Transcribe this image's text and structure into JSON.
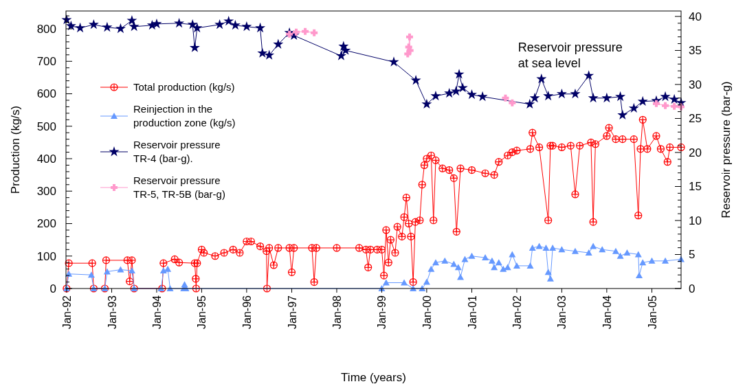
{
  "chart_data": {
    "type": "line",
    "xlabel": "Time (years)",
    "ylabel": "Production (kg/s)",
    "y2label": "Reservoir pressure (bar-g)",
    "annotations": [
      "Reservoir pressure\nat sea level"
    ],
    "legend": "left",
    "grid": false,
    "xlim": [
      "1991-12-27",
      "2005-08-26"
    ],
    "xticks": [
      {
        "value": "1992-01-01",
        "label": "Jan-92"
      },
      {
        "value": "1993-01-01",
        "label": "Jan-93"
      },
      {
        "value": "1994-01-01",
        "label": "Jan-94"
      },
      {
        "value": "1995-01-01",
        "label": "Jan-95"
      },
      {
        "value": "1996-01-01",
        "label": "Jan-96"
      },
      {
        "value": "1997-01-01",
        "label": "Jan-97"
      },
      {
        "value": "1998-01-01",
        "label": "Jan-98"
      },
      {
        "value": "1999-01-01",
        "label": "Jan-99"
      },
      {
        "value": "2000-01-01",
        "label": "Jan-00"
      },
      {
        "value": "2001-01-01",
        "label": "Jan-01"
      },
      {
        "value": "2002-01-01",
        "label": "Jan-02"
      },
      {
        "value": "2003-01-01",
        "label": "Jan-03"
      },
      {
        "value": "2004-01-01",
        "label": "Jan-04"
      },
      {
        "value": "2005-01-01",
        "label": "Jan-05"
      }
    ],
    "ylim": [
      0,
      855
    ],
    "yticks": [
      0,
      {
        "value": 20,
        "label": null
      },
      {
        "value": 40,
        "label": null
      },
      {
        "value": 60,
        "label": null
      },
      {
        "value": 80,
        "label": null
      },
      100,
      {
        "value": 120,
        "label": null
      },
      {
        "value": 140,
        "label": null
      },
      {
        "value": 160,
        "label": null
      },
      {
        "value": 180,
        "label": null
      },
      200,
      {
        "value": 220,
        "label": null
      },
      {
        "value": 240,
        "label": null
      },
      {
        "value": 260,
        "label": null
      },
      {
        "value": 280,
        "label": null
      },
      300,
      {
        "value": 320,
        "label": null
      },
      {
        "value": 340,
        "label": null
      },
      {
        "value": 360,
        "label": null
      },
      {
        "value": 380,
        "label": null
      },
      400,
      {
        "value": 420,
        "label": null
      },
      {
        "value": 440,
        "label": null
      },
      {
        "value": 460,
        "label": null
      },
      {
        "value": 480,
        "label": null
      },
      500,
      {
        "value": 520,
        "label": null
      },
      {
        "value": 540,
        "label": null
      },
      {
        "value": 560,
        "label": null
      },
      {
        "value": 580,
        "label": null
      },
      600,
      {
        "value": 620,
        "label": null
      },
      {
        "value": 640,
        "label": null
      },
      {
        "value": 660,
        "label": null
      },
      {
        "value": 680,
        "label": null
      },
      700,
      {
        "value": 720,
        "label": null
      },
      {
        "value": 740,
        "label": null
      },
      {
        "value": 760,
        "label": null
      },
      {
        "value": 780,
        "label": null
      },
      800,
      {
        "value": 820,
        "label": null
      },
      {
        "value": 840,
        "label": null
      }
    ],
    "y2lim": [
      0,
      40.8
    ],
    "y2ticks": [
      0,
      {
        "value": 1,
        "label": null
      },
      {
        "value": 2,
        "label": null
      },
      {
        "value": 3,
        "label": null
      },
      {
        "value": 4,
        "label": null
      },
      5,
      {
        "value": 6,
        "label": null
      },
      {
        "value": 7,
        "label": null
      },
      {
        "value": 8,
        "label": null
      },
      {
        "value": 9,
        "label": null
      },
      10,
      {
        "value": 11,
        "label": null
      },
      {
        "value": 12,
        "label": null
      },
      {
        "value": 13,
        "label": null
      },
      {
        "value": 14,
        "label": null
      },
      15,
      {
        "value": 16,
        "label": null
      },
      {
        "value": 17,
        "label": null
      },
      {
        "value": 18,
        "label": null
      },
      {
        "value": 19,
        "label": null
      },
      20,
      {
        "value": 21,
        "label": null
      },
      {
        "value": 22,
        "label": null
      },
      {
        "value": 23,
        "label": null
      },
      {
        "value": 24,
        "label": null
      },
      25,
      {
        "value": 26,
        "label": null
      },
      {
        "value": 27,
        "label": null
      },
      {
        "value": 28,
        "label": null
      },
      {
        "value": 29,
        "label": null
      },
      30,
      {
        "value": 31,
        "label": null
      },
      {
        "value": 32,
        "label": null
      },
      {
        "value": 33,
        "label": null
      },
      {
        "value": 34,
        "label": null
      },
      35,
      {
        "value": 36,
        "label": null
      },
      {
        "value": 37,
        "label": null
      },
      {
        "value": 38,
        "label": null
      },
      {
        "value": 39,
        "label": null
      },
      40
    ],
    "series": [
      {
        "name": "Total production (kg/s)",
        "color": "#ff0000",
        "marker": "circle",
        "x": [
          "1992-01-01",
          "1992-01-19",
          "1992-07-27",
          "1992-08-08",
          "1992-11-06",
          "1992-11-17",
          "1993-05-08",
          "1993-05-27",
          "1993-06-14",
          "1993-07-02",
          "1994-02-14",
          "1994-02-25",
          "1994-05-27",
          "1994-07-02",
          "1994-11-06",
          "1994-11-14",
          "1994-11-17",
          "1994-11-25",
          "1995-01-01",
          "1995-01-19",
          "1995-04-20",
          "1995-07-02",
          "1995-09-13",
          "1995-11-06",
          "1996-01-01",
          "1996-02-06",
          "1996-04-20",
          "1996-06-10",
          "1996-06-14",
          "1996-07-02",
          "1996-08-08",
          "1996-09-13",
          "1996-12-13",
          "1997-01-01",
          "1997-01-19",
          "1997-06-14",
          "1997-07-02",
          "1997-07-20",
          "1998-01-01",
          "1998-07-02",
          "1998-08-26",
          "1998-09-13",
          "1998-10-01",
          "1998-11-25",
          "1999-01-01",
          "1999-01-19",
          "1999-02-06",
          "1999-02-25",
          "1999-03-14",
          "1999-04-20",
          "1999-05-08",
          "1999-06-14",
          "1999-07-02",
          "1999-07-20",
          "1999-08-08",
          "1999-08-26",
          "1999-09-13",
          "1999-10-01",
          "1999-11-06",
          "1999-11-25",
          "1999-12-13",
          "2000-01-01",
          "2000-02-06",
          "2000-02-25",
          "2000-03-14",
          "2000-05-08",
          "2000-07-02",
          "2000-08-08",
          "2000-08-30",
          "2000-10-01",
          "2001-01-01",
          "2001-04-20",
          "2001-07-02",
          "2001-08-08",
          "2001-10-19",
          "2001-11-25",
          "2002-01-01",
          "2002-04-20",
          "2002-05-08",
          "2002-07-02",
          "2002-09-13",
          "2002-10-01",
          "2002-10-19",
          "2003-01-01",
          "2003-03-14",
          "2003-04-20",
          "2003-05-27",
          "2003-08-26",
          "2003-09-13",
          "2003-10-01",
          "2004-01-01",
          "2004-01-19",
          "2004-03-14",
          "2004-05-08",
          "2004-08-08",
          "2004-09-13",
          "2004-10-01",
          "2004-10-19",
          "2004-11-25",
          "2005-02-06",
          "2005-03-14",
          "2005-05-08",
          "2005-05-27",
          "2005-08-26"
        ],
        "values": [
          0,
          78,
          78,
          0,
          0,
          87,
          87,
          22,
          87,
          0,
          0,
          78,
          90,
          80,
          78,
          30,
          0,
          78,
          120,
          110,
          100,
          110,
          120,
          110,
          145,
          145,
          130,
          115,
          0,
          125,
          72,
          125,
          125,
          50,
          125,
          125,
          20,
          125,
          125,
          125,
          120,
          65,
          120,
          120,
          120,
          40,
          180,
          80,
          150,
          110,
          190,
          160,
          220,
          280,
          200,
          160,
          20,
          205,
          210,
          320,
          380,
          400,
          410,
          210,
          395,
          370,
          365,
          340,
          175,
          370,
          365,
          355,
          350,
          390,
          410,
          420,
          425,
          430,
          480,
          435,
          210,
          440,
          440,
          435,
          440,
          290,
          440,
          450,
          205,
          445,
          470,
          495,
          460,
          460,
          460,
          225,
          430,
          520,
          430,
          470,
          430,
          390,
          435,
          435
        ]
      },
      {
        "name": "Reinjection in the\nproduction zone (kg/s)",
        "color": "#6699ff",
        "marker": "triangle",
        "x": [
          "1992-01-01",
          "1992-01-19",
          "1992-07-20",
          "1992-08-08",
          "1992-11-06",
          "1992-11-25",
          "1993-03-14",
          "1993-06-14",
          "1993-07-02",
          "1994-02-06",
          "1994-02-25",
          "1994-04-01",
          "1994-04-20",
          "1994-08-08",
          "1994-08-15",
          "1994-08-26",
          "1999-01-01",
          "1999-02-06",
          "1999-07-02",
          "1999-09-13",
          "1999-11-25",
          "2000-01-01",
          "2000-02-06",
          "2000-03-14",
          "2000-05-27",
          "2000-08-08",
          "2000-09-13",
          "2000-10-01",
          "2000-11-06",
          "2001-01-01",
          "2001-04-20",
          "2001-06-14",
          "2001-07-02",
          "2001-08-08",
          "2001-09-13",
          "2001-10-19",
          "2001-11-25",
          "2002-01-01",
          "2002-04-20",
          "2002-05-08",
          "2002-07-02",
          "2002-08-26",
          "2002-09-13",
          "2002-10-01",
          "2002-10-19",
          "2003-01-01",
          "2003-04-20",
          "2003-08-08",
          "2003-09-13",
          "2003-11-25",
          "2004-03-14",
          "2004-04-20",
          "2004-06-14",
          "2004-09-13",
          "2004-09-20",
          "2004-10-19",
          "2005-01-01",
          "2005-04-20",
          "2005-08-26"
        ],
        "values": [
          0,
          45,
          42,
          0,
          0,
          52,
          58,
          55,
          0,
          0,
          55,
          60,
          0,
          0,
          12,
          0,
          0,
          18,
          18,
          0,
          0,
          20,
          60,
          80,
          85,
          75,
          65,
          35,
          90,
          100,
          95,
          85,
          65,
          80,
          60,
          65,
          105,
          70,
          70,
          125,
          130,
          125,
          50,
          30,
          125,
          120,
          115,
          110,
          130,
          120,
          115,
          100,
          110,
          105,
          40,
          80,
          85,
          85,
          90
        ]
      },
      {
        "name": "Reservoir pressure\nTR-4 (bar-g).",
        "color": "#000066",
        "marker": "star",
        "axis": "y2",
        "x": [
          "1992-01-01",
          "1992-02-06",
          "1992-04-20",
          "1992-08-08",
          "1992-11-25",
          "1993-03-14",
          "1993-06-14",
          "1993-07-02",
          "1993-11-25",
          "1994-01-01",
          "1994-07-02",
          "1994-10-19",
          "1994-11-06",
          "1994-11-25",
          "1995-05-27",
          "1995-08-08",
          "1995-10-01",
          "1996-01-01",
          "1996-04-20",
          "1996-05-08",
          "1996-07-02",
          "1996-09-13",
          "1996-12-13",
          "1997-01-19",
          "1998-02-06",
          "1998-02-25",
          "1998-03-14",
          "1999-04-09",
          "1999-10-05",
          "2000-01-01",
          "2000-03-14",
          "2000-07-02",
          "2000-08-26",
          "2000-09-20",
          "2000-10-19",
          "2001-01-01",
          "2001-03-29",
          "2002-04-16",
          "2002-05-27",
          "2002-07-20",
          "2002-09-13",
          "2003-01-01",
          "2003-04-20",
          "2003-08-08",
          "2003-09-13",
          "2004-01-01",
          "2004-04-20",
          "2004-05-08",
          "2004-08-08",
          "2004-10-19",
          "2005-02-06",
          "2005-04-20",
          "2005-07-02",
          "2005-08-26"
        ],
        "values": [
          39.5,
          38.6,
          38.3,
          38.8,
          38.4,
          38.2,
          39.4,
          38.5,
          38.7,
          38.9,
          39.0,
          38.8,
          35.4,
          38.3,
          38.8,
          39.3,
          38.7,
          38.5,
          38.3,
          34.6,
          34.3,
          35.9,
          37.6,
          37.2,
          34.2,
          35.6,
          35.0,
          33.3,
          30.6,
          27.1,
          28.3,
          28.7,
          29.0,
          31.5,
          29.5,
          28.5,
          28.2,
          27.1,
          28.0,
          30.8,
          28.3,
          28.6,
          28.6,
          31.3,
          28.0,
          28.0,
          28.2,
          25.5,
          26.5,
          27.5,
          27.6,
          28.2,
          27.8,
          27.3
        ]
      },
      {
        "name": "Reservoir pressure\nTR-5, TR-5B (bar-g)",
        "color": "#ff99cc",
        "marker": "cross",
        "axis": "y2",
        "x": [
          "1996-12-13",
          "1997-02-06",
          "1997-04-20",
          "1997-07-02",
          "1998-07-02",
          "1999-07-31",
          "1999-08-08",
          "1999-08-15",
          "1999-08-19",
          "2000-07-02",
          "2001-10-01",
          "2001-11-25",
          "2003-07-02",
          "2005-02-06",
          "2005-04-20",
          "2005-07-02",
          "2005-08-26"
        ],
        "values": [
          37.4,
          37.7,
          37.8,
          37.6,
          null,
          34.5,
          35.5,
          37.0,
          35.0,
          null,
          28.0,
          27.3,
          null,
          27.2,
          26.9,
          26.8,
          26.7
        ]
      }
    ]
  }
}
